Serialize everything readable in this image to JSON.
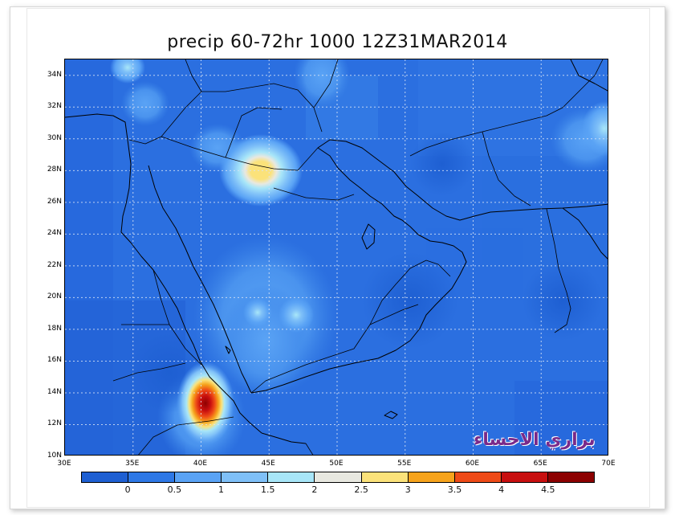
{
  "title": "precip 60-72hr 1000 12Z31MAR2014",
  "x_ticks": [
    "30E",
    "35E",
    "40E",
    "45E",
    "50E",
    "55E",
    "60E",
    "65E",
    "70E"
  ],
  "y_ticks": [
    "34N",
    "32N",
    "30N",
    "28N",
    "26N",
    "24N",
    "22N",
    "20N",
    "18N",
    "16N",
    "14N",
    "12N",
    "10N"
  ],
  "legend": {
    "labels": [
      "0",
      "0.5",
      "1",
      "1.5",
      "2",
      "2.5",
      "3",
      "3.5",
      "4",
      "4.5"
    ],
    "colors": [
      "#1e5fd2",
      "#2e78e6",
      "#5aa3f5",
      "#7fc0f8",
      "#a8e6f8",
      "#e8e8e0",
      "#fbe27a",
      "#f6a31c",
      "#ee4a17",
      "#c80f0f",
      "#8c0000"
    ]
  },
  "map": {
    "lon_range": [
      30,
      70
    ],
    "lat_range": [
      10,
      35
    ],
    "background_color": "#2b6fe0",
    "features": [
      {
        "label": "precipitation maximum",
        "lon": 40.4,
        "lat": 13.4,
        "value": 4.5
      },
      {
        "label": "secondary maximum",
        "lon": 44.4,
        "lat": 28.0,
        "value": 2.5
      },
      {
        "label": "light area central Arabia",
        "lon": 46.1,
        "lat": 19.1,
        "value": 1.5
      }
    ]
  },
  "watermark": "براري الاحساء"
}
